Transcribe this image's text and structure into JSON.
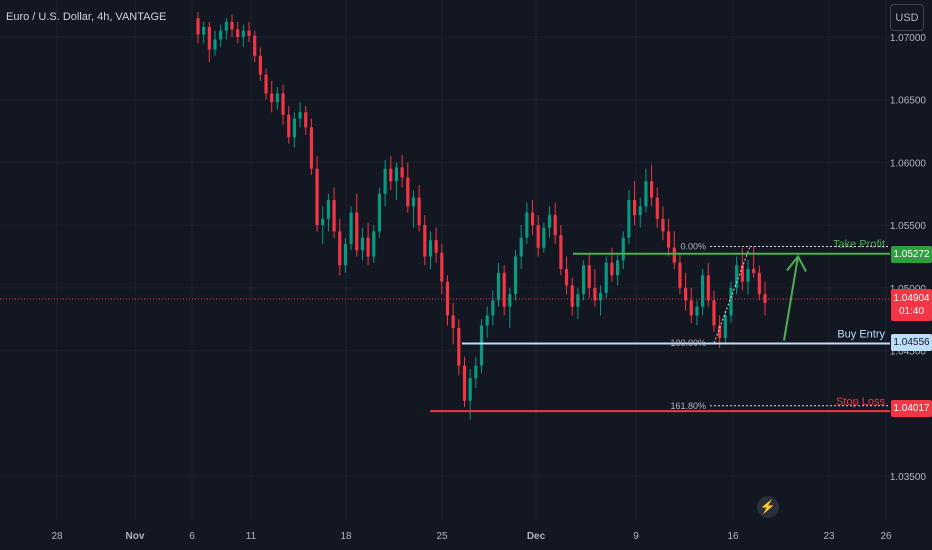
{
  "header": {
    "title": "Euro / U.S. Dollar, 4h, VANTAGE",
    "currency_button": "USD"
  },
  "current_price": {
    "price": "1.04904",
    "countdown": "01:40"
  },
  "flash_icon": "lightning-icon",
  "chart_data": {
    "type": "candlestick",
    "title": "Euro / U.S. Dollar, 4h, VANTAGE",
    "ylim": [
      1.033,
      1.0715
    ],
    "y_ticks": [
      "1.07000",
      "1.06500",
      "1.06000",
      "1.05500",
      "1.05000",
      "1.04500",
      "1.03500"
    ],
    "x_ticks": [
      "28",
      "Nov",
      "6",
      "11",
      "18",
      "25",
      "Dec",
      "9",
      "16",
      "23",
      "26"
    ],
    "levels": [
      {
        "name": "Take Profit",
        "price": 1.05272,
        "label": "1.05272",
        "color": "#4caf50"
      },
      {
        "name": "Buy Entry",
        "price": 1.04556,
        "label": "1.04556",
        "color": "#bbdefb"
      },
      {
        "name": "Stop Loss",
        "price": 1.04017,
        "label": "1.04017",
        "color": "#f23645"
      }
    ],
    "fib_levels": [
      {
        "label": "0.00%",
        "price": 1.0533
      },
      {
        "label": "100.00%",
        "price": 1.0456
      },
      {
        "label": "161.80%",
        "price": 1.0406
      }
    ],
    "candles": [
      [
        1.0715,
        1.072,
        1.0695,
        1.0702
      ],
      [
        1.0702,
        1.0712,
        1.0695,
        1.0708
      ],
      [
        1.0708,
        1.0712,
        1.068,
        1.069
      ],
      [
        1.069,
        1.0705,
        1.0685,
        1.0698
      ],
      [
        1.0698,
        1.071,
        1.0692,
        1.0705
      ],
      [
        1.0705,
        1.0715,
        1.0698,
        1.0712
      ],
      [
        1.0712,
        1.0718,
        1.07,
        1.0706
      ],
      [
        1.0706,
        1.0712,
        1.0695,
        1.07
      ],
      [
        1.07,
        1.071,
        1.0692,
        1.0705
      ],
      [
        1.0705,
        1.0712,
        1.0696,
        1.0701
      ],
      [
        1.0701,
        1.0705,
        1.068,
        1.0685
      ],
      [
        1.0685,
        1.0692,
        1.0665,
        1.067
      ],
      [
        1.067,
        1.0675,
        1.065,
        1.0655
      ],
      [
        1.0655,
        1.0665,
        1.064,
        1.0648
      ],
      [
        1.0648,
        1.066,
        1.0642,
        1.0655
      ],
      [
        1.0655,
        1.0662,
        1.063,
        1.0638
      ],
      [
        1.0638,
        1.0645,
        1.0615,
        1.062
      ],
      [
        1.062,
        1.064,
        1.0612,
        1.0635
      ],
      [
        1.0635,
        1.0648,
        1.0628,
        1.064
      ],
      [
        1.064,
        1.0645,
        1.0622,
        1.0628
      ],
      [
        1.0628,
        1.0635,
        1.059,
        1.0595
      ],
      [
        1.0595,
        1.0605,
        1.0545,
        1.055
      ],
      [
        1.055,
        1.0565,
        1.0535,
        1.0555
      ],
      [
        1.0555,
        1.0575,
        1.0545,
        1.057
      ],
      [
        1.057,
        1.058,
        1.054,
        1.0545
      ],
      [
        1.0545,
        1.0555,
        1.051,
        1.0518
      ],
      [
        1.0518,
        1.054,
        1.0512,
        1.0535
      ],
      [
        1.0535,
        1.0565,
        1.053,
        1.056
      ],
      [
        1.056,
        1.0575,
        1.0525,
        1.053
      ],
      [
        1.053,
        1.0548,
        1.0522,
        1.054
      ],
      [
        1.054,
        1.0552,
        1.0518,
        1.0525
      ],
      [
        1.0525,
        1.055,
        1.052,
        1.0545
      ],
      [
        1.0545,
        1.058,
        1.054,
        1.0575
      ],
      [
        1.0575,
        1.0602,
        1.0565,
        1.0595
      ],
      [
        1.0595,
        1.0605,
        1.0578,
        1.0585
      ],
      [
        1.0585,
        1.06,
        1.057,
        1.0596
      ],
      [
        1.0596,
        1.0606,
        1.058,
        1.0588
      ],
      [
        1.0588,
        1.06,
        1.056,
        1.0565
      ],
      [
        1.0565,
        1.0578,
        1.0548,
        1.0572
      ],
      [
        1.0572,
        1.0582,
        1.0545,
        1.055
      ],
      [
        1.055,
        1.0558,
        1.0518,
        1.0525
      ],
      [
        1.0525,
        1.0545,
        1.0515,
        1.0538
      ],
      [
        1.0538,
        1.0548,
        1.052,
        1.0528
      ],
      [
        1.0528,
        1.0535,
        1.0495,
        1.0505
      ],
      [
        1.0505,
        1.051,
        1.047,
        1.0478
      ],
      [
        1.0478,
        1.0488,
        1.0455,
        1.0468
      ],
      [
        1.0468,
        1.0475,
        1.043,
        1.0438
      ],
      [
        1.0438,
        1.0445,
        1.0405,
        1.041
      ],
      [
        1.041,
        1.0435,
        1.0395,
        1.0428
      ],
      [
        1.0428,
        1.0445,
        1.042,
        1.0438
      ],
      [
        1.0438,
        1.0475,
        1.0432,
        1.047
      ],
      [
        1.047,
        1.0485,
        1.046,
        1.0478
      ],
      [
        1.0478,
        1.0498,
        1.047,
        1.049
      ],
      [
        1.049,
        1.052,
        1.0485,
        1.0512
      ],
      [
        1.0512,
        1.0518,
        1.0478,
        1.0485
      ],
      [
        1.0485,
        1.05,
        1.0468,
        1.0495
      ],
      [
        1.0495,
        1.053,
        1.049,
        1.0525
      ],
      [
        1.0525,
        1.055,
        1.0515,
        1.054
      ],
      [
        1.054,
        1.0568,
        1.0535,
        1.056
      ],
      [
        1.056,
        1.057,
        1.0542,
        1.055
      ],
      [
        1.055,
        1.0558,
        1.0525,
        1.0532
      ],
      [
        1.0532,
        1.0552,
        1.0528,
        1.0548
      ],
      [
        1.0548,
        1.0565,
        1.054,
        1.0558
      ],
      [
        1.0558,
        1.0568,
        1.0535,
        1.0542
      ],
      [
        1.0542,
        1.055,
        1.051,
        1.0515
      ],
      [
        1.0515,
        1.0525,
        1.0495,
        1.0502
      ],
      [
        1.0502,
        1.0508,
        1.0478,
        1.0485
      ],
      [
        1.0485,
        1.05,
        1.0475,
        1.0495
      ],
      [
        1.0495,
        1.0522,
        1.049,
        1.0518
      ],
      [
        1.0518,
        1.0528,
        1.0492,
        1.05
      ],
      [
        1.05,
        1.0515,
        1.0485,
        1.049
      ],
      [
        1.049,
        1.0502,
        1.0478,
        1.0496
      ],
      [
        1.0496,
        1.0525,
        1.0492,
        1.052
      ],
      [
        1.052,
        1.0532,
        1.0505,
        1.051
      ],
      [
        1.051,
        1.0528,
        1.0502,
        1.0522
      ],
      [
        1.0522,
        1.0545,
        1.0515,
        1.054
      ],
      [
        1.054,
        1.0578,
        1.0535,
        1.057
      ],
      [
        1.057,
        1.0585,
        1.055,
        1.0558
      ],
      [
        1.0558,
        1.0572,
        1.0548,
        1.0565
      ],
      [
        1.0565,
        1.0595,
        1.056,
        1.0585
      ],
      [
        1.0585,
        1.0598,
        1.0565,
        1.0572
      ],
      [
        1.0572,
        1.058,
        1.0548,
        1.0555
      ],
      [
        1.0555,
        1.0565,
        1.0538,
        1.0545
      ],
      [
        1.0545,
        1.0555,
        1.0525,
        1.0532
      ],
      [
        1.0532,
        1.0545,
        1.0515,
        1.052
      ],
      [
        1.052,
        1.0528,
        1.0495,
        1.05
      ],
      [
        1.05,
        1.0512,
        1.0482,
        1.049
      ],
      [
        1.049,
        1.05,
        1.0472,
        1.0478
      ],
      [
        1.0478,
        1.049,
        1.047,
        1.0485
      ],
      [
        1.0485,
        1.0515,
        1.0478,
        1.051
      ],
      [
        1.051,
        1.052,
        1.0485,
        1.049
      ],
      [
        1.049,
        1.0498,
        1.0465,
        1.047
      ],
      [
        1.047,
        1.0478,
        1.0452,
        1.046
      ],
      [
        1.046,
        1.0482,
        1.0456,
        1.0478
      ],
      [
        1.0478,
        1.0505,
        1.0472,
        1.05
      ],
      [
        1.05,
        1.0525,
        1.0495,
        1.0518
      ],
      [
        1.0518,
        1.0532,
        1.0498,
        1.0505
      ],
      [
        1.0505,
        1.0522,
        1.0495,
        1.0515
      ],
      [
        1.0515,
        1.0533,
        1.0508,
        1.0512
      ],
      [
        1.0512,
        1.0518,
        1.049,
        1.0495
      ],
      [
        1.0495,
        1.0505,
        1.0478,
        1.0488
      ]
    ],
    "trade_arrow": {
      "from_price": 1.0458,
      "to_price": 1.0525
    }
  }
}
